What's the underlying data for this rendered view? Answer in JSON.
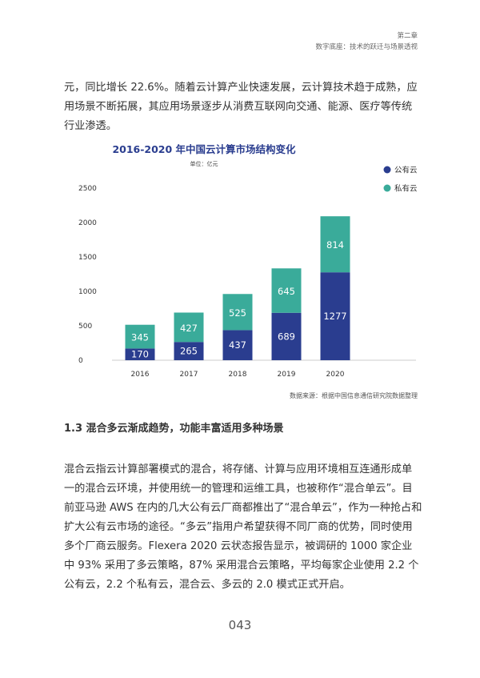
{
  "header": {
    "chapter": "第二章",
    "subtitle": "数字底座：技术的跃迁与场景透视"
  },
  "intro_text": "元，同比增长 22.6%。随着云计算产业快速发展，云计算技术趋于成熟，应用场景不断拓展，其应用场景逐步从消费互联网向交通、能源、医疗等传统行业渗透。",
  "chart_data": {
    "type": "bar",
    "stacked": true,
    "title": "2016-2020 年中国云计算市场结构变化",
    "subtitle": "单位：亿元",
    "categories": [
      "2016",
      "2017",
      "2018",
      "2019",
      "2020"
    ],
    "series": [
      {
        "name": "公有云",
        "values": [
          170,
          265,
          437,
          689,
          1277
        ],
        "color": "#2a3d8f"
      },
      {
        "name": "私有云",
        "values": [
          345,
          427,
          525,
          645,
          814
        ],
        "color": "#3aab9a"
      }
    ],
    "yticks": [
      "0",
      "500",
      "1000",
      "1500",
      "2000",
      "2500"
    ],
    "ylim": [
      0,
      2500
    ],
    "legend_position": "top-right",
    "grid": false
  },
  "source": "数据来源：根据中国信息通信研究院数据整理",
  "section_title": "1.3 混合多云渐成趋势，功能丰富适用多种场景",
  "body_text": "混合云指云计算部署模式的混合，将存储、计算与应用环境相互连通形成单一的混合云环境，并使用统一的管理和运维工具，也被称作“混合单云”。目前亚马逊 AWS 在内的几大公有云厂商都推出了“混合单云”，作为一种抢占和扩大公有云市场的途径。“多云”指用户希望获得不同厂商的优势，同时使用多个厂商云服务。Flexera 2020 云状态报告显示，被调研的 1000 家企业中 93% 采用了多云策略，87% 采用混合云策略，平均每家企业使用 2.2 个公有云，2.2 个私有云，混合云、多云的 2.0 模式正式开启。",
  "page_number": "043"
}
